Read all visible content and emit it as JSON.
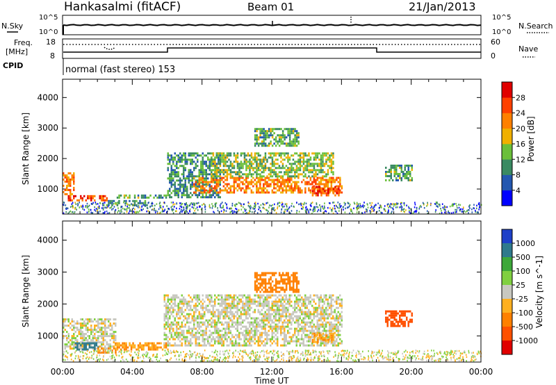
{
  "header": {
    "title": "Hankasalmi (fitACF)",
    "beam": "Beam 01",
    "date": "21/Jan/2013"
  },
  "noise_panel": {
    "left_label": "N.Sky",
    "right_label": "N.Search",
    "tick_top": "10^5",
    "tick_bottom": "10^0"
  },
  "freq_panel": {
    "left_label": "Freq.",
    "left_unit": "[MHz]",
    "left_ticks": [
      "18",
      "8"
    ],
    "right_ticks": [
      "60",
      "0"
    ],
    "right_label": "Nave",
    "cpid_label": "CPID",
    "cpid_value": "normal (fast stereo) 153"
  },
  "colors": {
    "power_scale": [
      "#0000ff",
      "#2357b0",
      "#3a8a62",
      "#6abf3a",
      "#f0b000",
      "#ff8000",
      "#ff4000",
      "#e00000"
    ],
    "velocity_scale": [
      "#1e40c8",
      "#2f7a8c",
      "#3da83a",
      "#80d040",
      "#c8c8c0",
      "#ffb020",
      "#ff8000",
      "#ff5000",
      "#e00000"
    ]
  },
  "chart_data": [
    {
      "type": "heatmap",
      "name": "power",
      "ylabel": "Slant Range [km]",
      "xlabel": "",
      "x_range_hours": [
        0,
        24
      ],
      "ylim": [
        180,
        4600
      ],
      "y_ticks": [
        1000,
        2000,
        3000,
        4000
      ],
      "colorbar_label": "Power [dB]",
      "colorbar_ticks": [
        "4",
        "8",
        "12",
        "16",
        "20",
        "24",
        "28"
      ],
      "colorbar_range": [
        0,
        32
      ],
      "echo_regions": [
        {
          "t": [
            0.0,
            0.6
          ],
          "r": [
            850,
            1550
          ],
          "value": 22
        },
        {
          "t": [
            0.3,
            2.5
          ],
          "r": [
            600,
            800
          ],
          "value": 26
        },
        {
          "t": [
            2.5,
            4.8
          ],
          "r": [
            500,
            640
          ],
          "value": 10
        },
        {
          "t": [
            3.0,
            6.0
          ],
          "r": [
            700,
            820
          ],
          "value": 12
        },
        {
          "t": [
            6.0,
            9.0
          ],
          "r": [
            700,
            2200
          ],
          "value": 10
        },
        {
          "t": [
            7.5,
            16.0
          ],
          "r": [
            900,
            1400
          ],
          "value": 22
        },
        {
          "t": [
            8.5,
            15.5
          ],
          "r": [
            1400,
            2200
          ],
          "value": 14
        },
        {
          "t": [
            11.0,
            13.5
          ],
          "r": [
            2400,
            3000
          ],
          "value": 12
        },
        {
          "t": [
            14.3,
            15.8
          ],
          "r": [
            800,
            1100
          ],
          "value": 26
        },
        {
          "t": [
            18.5,
            20.0
          ],
          "r": [
            1300,
            1800
          ],
          "value": 12
        }
      ]
    },
    {
      "type": "heatmap",
      "name": "velocity",
      "ylabel": "Slant Range [km]",
      "xlabel": "Time UT",
      "x_range_hours": [
        0,
        24
      ],
      "x_ticks": [
        "00:00",
        "04:00",
        "08:00",
        "12:00",
        "16:00",
        "20:00",
        "00:00"
      ],
      "ylim": [
        180,
        4600
      ],
      "y_ticks": [
        1000,
        2000,
        3000,
        4000
      ],
      "colorbar_label": "Velocity [m s^-1]",
      "colorbar_ticks": [
        "1000",
        "500",
        "100",
        "25",
        "-25",
        "-100",
        "-500",
        "-1000"
      ],
      "echo_regions": [
        {
          "t": [
            0.0,
            3.0
          ],
          "r": [
            600,
            1550
          ],
          "value": 0
        },
        {
          "t": [
            0.7,
            2.0
          ],
          "r": [
            600,
            800
          ],
          "value": 200
        },
        {
          "t": [
            2.0,
            3.0
          ],
          "r": [
            500,
            640
          ],
          "value": -100
        },
        {
          "t": [
            3.0,
            6.0
          ],
          "r": [
            600,
            800
          ],
          "value": -100
        },
        {
          "t": [
            5.8,
            16.0
          ],
          "r": [
            700,
            2300
          ],
          "value": 0
        },
        {
          "t": [
            11.0,
            13.5
          ],
          "r": [
            2400,
            3000
          ],
          "value": -300
        },
        {
          "t": [
            14.3,
            15.5
          ],
          "r": [
            800,
            1100
          ],
          "value": -100
        },
        {
          "t": [
            18.5,
            20.0
          ],
          "r": [
            1300,
            1800
          ],
          "value": -600
        }
      ]
    }
  ]
}
